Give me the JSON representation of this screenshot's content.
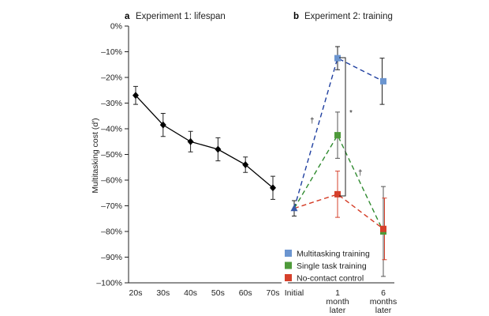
{
  "chart_data": [
    {
      "type": "line",
      "panel_letter": "a",
      "title": "Experiment 1: lifespan",
      "ylabel": "Multitasking cost (d′)",
      "xlabel": "",
      "ylim": [
        -100,
        0
      ],
      "y_ticks": [
        "0%",
        "–10%",
        "–20%",
        "–30%",
        "–40%",
        "–50%",
        "–60%",
        "–70%",
        "–80%",
        "–90%",
        "–100%"
      ],
      "categories": [
        "20s",
        "30s",
        "40s",
        "50s",
        "60s",
        "70s"
      ],
      "series": [
        {
          "color": "#000000",
          "values": [
            -27,
            -38.5,
            -45,
            -48,
            -54,
            -63
          ],
          "error": [
            3.5,
            4.5,
            4,
            4.5,
            3,
            4.5
          ]
        }
      ],
      "grid": false
    },
    {
      "type": "line",
      "panel_letter": "b",
      "title": "Experiment 2: training",
      "categories": [
        "Initial",
        "1\nmonth\nlater",
        "6\nmonths\nlater"
      ],
      "ylim": [
        -100,
        0
      ],
      "series": [
        {
          "name": "Multitasking training",
          "color": "#6b95d0",
          "line_color": "#1f3fa0",
          "values": [
            -71,
            -12.5,
            -21.5
          ],
          "error": [
            3,
            4.5,
            9
          ]
        },
        {
          "name": "Single task training",
          "color": "#4e9a3a",
          "line_color": "#2f8a2f",
          "values": [
            -71,
            -42.5,
            -80
          ],
          "error": [
            3,
            9,
            17.5
          ]
        },
        {
          "name": "No-contact control",
          "color": "#d6402b",
          "line_color": "#d43a24",
          "values": [
            -71,
            -65.5,
            -79
          ],
          "error": [
            3,
            9,
            12
          ]
        }
      ],
      "annotations": [
        "†",
        "*",
        "†"
      ],
      "legend_position": "bottom-right",
      "grid": false
    }
  ]
}
